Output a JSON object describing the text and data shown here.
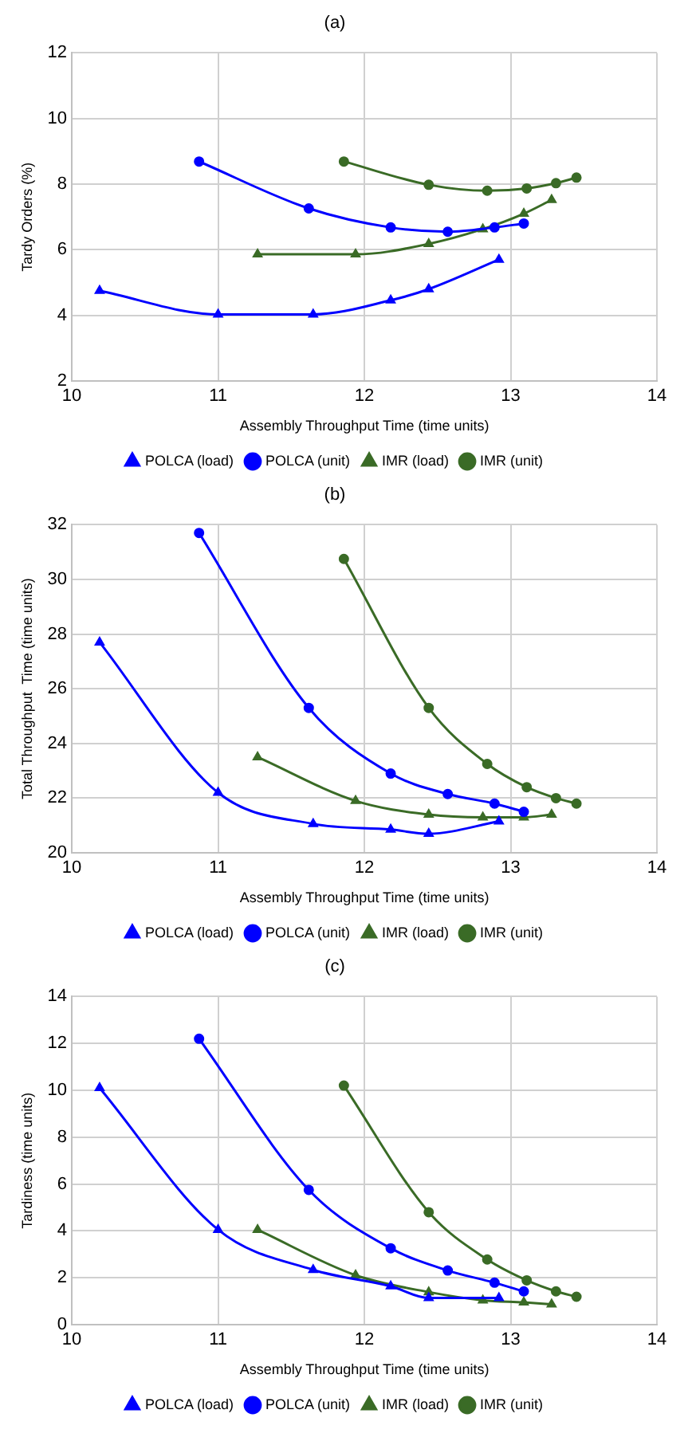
{
  "chart_data": [
    {
      "type": "line",
      "title": "(a)",
      "xlabel": "Assembly Throughput Time (time units)",
      "ylabel": "Tardy Orders (%)",
      "xlim": [
        10,
        14
      ],
      "xticks": [
        10,
        11,
        12,
        13,
        14
      ],
      "ylim": [
        2,
        12
      ],
      "yticks": [
        2,
        4,
        6,
        8,
        10,
        12
      ],
      "grid": true,
      "legend": "bottom",
      "series": [
        {
          "name": "POLCA (load)",
          "color": "#0000ff",
          "marker": "triangle",
          "x": [
            10.19,
            11.0,
            11.65,
            12.18,
            12.44,
            12.92
          ],
          "values": [
            4.75,
            4.03,
            4.03,
            4.46,
            4.8,
            5.7
          ]
        },
        {
          "name": "POLCA (unit)",
          "color": "#0000ff",
          "marker": "circle",
          "x": [
            10.87,
            11.62,
            12.18,
            12.57,
            12.89,
            13.09
          ],
          "values": [
            8.69,
            7.26,
            6.68,
            6.55,
            6.68,
            6.8
          ]
        },
        {
          "name": "IMR (load)",
          "color": "#3a6b26",
          "marker": "triangle",
          "x": [
            11.27,
            11.94,
            12.44,
            12.81,
            13.09,
            13.28
          ],
          "values": [
            5.86,
            5.86,
            6.18,
            6.63,
            7.1,
            7.52
          ]
        },
        {
          "name": "IMR (unit)",
          "color": "#3a6b26",
          "marker": "circle",
          "x": [
            11.86,
            12.44,
            12.84,
            13.11,
            13.31,
            13.45
          ],
          "values": [
            8.69,
            7.98,
            7.8,
            7.87,
            8.03,
            8.2
          ]
        }
      ]
    },
    {
      "type": "line",
      "title": "(b)",
      "xlabel": "Assembly Throughput Time (time units)",
      "ylabel": "Total Throughput  Time (time units)",
      "xlim": [
        10,
        14
      ],
      "xticks": [
        10,
        11,
        12,
        13,
        14
      ],
      "ylim": [
        20,
        32
      ],
      "yticks": [
        20,
        22,
        24,
        26,
        28,
        30,
        32
      ],
      "grid": true,
      "legend": "bottom",
      "series": [
        {
          "name": "POLCA (load)",
          "color": "#0000ff",
          "marker": "triangle",
          "x": [
            10.19,
            11.0,
            11.65,
            12.18,
            12.44,
            12.92
          ],
          "values": [
            27.7,
            22.2,
            21.06,
            20.85,
            20.7,
            21.15
          ]
        },
        {
          "name": "POLCA (unit)",
          "color": "#0000ff",
          "marker": "circle",
          "x": [
            10.87,
            11.62,
            12.18,
            12.57,
            12.89,
            13.09
          ],
          "values": [
            31.7,
            25.3,
            22.9,
            22.15,
            21.8,
            21.5
          ]
        },
        {
          "name": "IMR (load)",
          "color": "#3a6b26",
          "marker": "triangle",
          "x": [
            11.27,
            11.94,
            12.44,
            12.81,
            13.09,
            13.28
          ],
          "values": [
            23.5,
            21.9,
            21.4,
            21.3,
            21.3,
            21.4
          ]
        },
        {
          "name": "IMR (unit)",
          "color": "#3a6b26",
          "marker": "circle",
          "x": [
            11.86,
            12.44,
            12.84,
            13.11,
            13.31,
            13.45
          ],
          "values": [
            30.75,
            25.3,
            23.25,
            22.4,
            22.0,
            21.8
          ]
        }
      ]
    },
    {
      "type": "line",
      "title": "(c)",
      "xlabel": "Assembly Throughput Time (time units)",
      "ylabel": "Tardiness (time units)",
      "xlim": [
        10,
        14
      ],
      "xticks": [
        10,
        11,
        12,
        13,
        14
      ],
      "ylim": [
        0,
        14
      ],
      "yticks": [
        0,
        2,
        4,
        6,
        8,
        10,
        12,
        14
      ],
      "grid": true,
      "legend": "bottom",
      "series": [
        {
          "name": "POLCA (load)",
          "color": "#0000ff",
          "marker": "triangle",
          "x": [
            10.19,
            11.0,
            11.65,
            12.18,
            12.44,
            12.92
          ],
          "values": [
            10.1,
            4.05,
            2.34,
            1.64,
            1.14,
            1.14
          ]
        },
        {
          "name": "POLCA (unit)",
          "color": "#0000ff",
          "marker": "circle",
          "x": [
            10.87,
            11.62,
            12.18,
            12.57,
            12.89,
            13.09
          ],
          "values": [
            12.2,
            5.75,
            3.26,
            2.31,
            1.79,
            1.42
          ]
        },
        {
          "name": "IMR (load)",
          "color": "#3a6b26",
          "marker": "triangle",
          "x": [
            11.27,
            11.94,
            12.44,
            12.81,
            13.09,
            13.28
          ],
          "values": [
            4.05,
            2.11,
            1.39,
            1.04,
            0.95,
            0.87
          ]
        },
        {
          "name": "IMR (unit)",
          "color": "#3a6b26",
          "marker": "circle",
          "x": [
            11.86,
            12.44,
            12.84,
            13.11,
            13.31,
            13.45
          ],
          "values": [
            10.2,
            4.8,
            2.78,
            1.89,
            1.42,
            1.19
          ]
        }
      ]
    }
  ]
}
